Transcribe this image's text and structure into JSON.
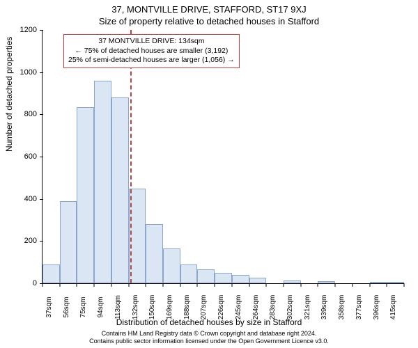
{
  "title_line1": "37, MONTVILLE DRIVE, STAFFORD, ST17 9XJ",
  "title_line2": "Size of property relative to detached houses in Stafford",
  "ylabel": "Number of detached properties",
  "xlabel": "Distribution of detached houses by size in Stafford",
  "footer_line1": "Contains HM Land Registry data © Crown copyright and database right 2024.",
  "footer_line2": "Contains public sector information licensed under the Open Government Licence v3.0.",
  "chart": {
    "type": "histogram",
    "background_color": "#ffffff",
    "bar_fill": "#dbe6f5",
    "bar_stroke": "#8aa6cc",
    "bar_stroke_width": 1,
    "refline_color": "#c04040",
    "refline_dash": "2px dashed",
    "ylim": [
      0,
      1200
    ],
    "ytick_step": 200,
    "yticks": [
      0,
      200,
      400,
      600,
      800,
      1000,
      1200
    ],
    "xtick_labels": [
      "37sqm",
      "56sqm",
      "75sqm",
      "94sqm",
      "113sqm",
      "132sqm",
      "150sqm",
      "169sqm",
      "188sqm",
      "207sqm",
      "226sqm",
      "245sqm",
      "264sqm",
      "283sqm",
      "302sqm",
      "321sqm",
      "339sqm",
      "358sqm",
      "377sqm",
      "396sqm",
      "415sqm"
    ],
    "bin_values": [
      90,
      390,
      835,
      960,
      880,
      450,
      280,
      165,
      90,
      65,
      50,
      40,
      25,
      0,
      12,
      0,
      10,
      0,
      0,
      8,
      8
    ],
    "reference_bin_index": 5,
    "info_box": {
      "border_color": "#c04040",
      "line1": "37 MONTVILLE DRIVE: 134sqm",
      "line2": "← 75% of detached houses are smaller (3,192)",
      "line3": "25% of semi-detached houses are larger (1,056) →"
    },
    "title_fontsize": 13,
    "label_fontsize": 12,
    "tick_fontsize": 11
  }
}
